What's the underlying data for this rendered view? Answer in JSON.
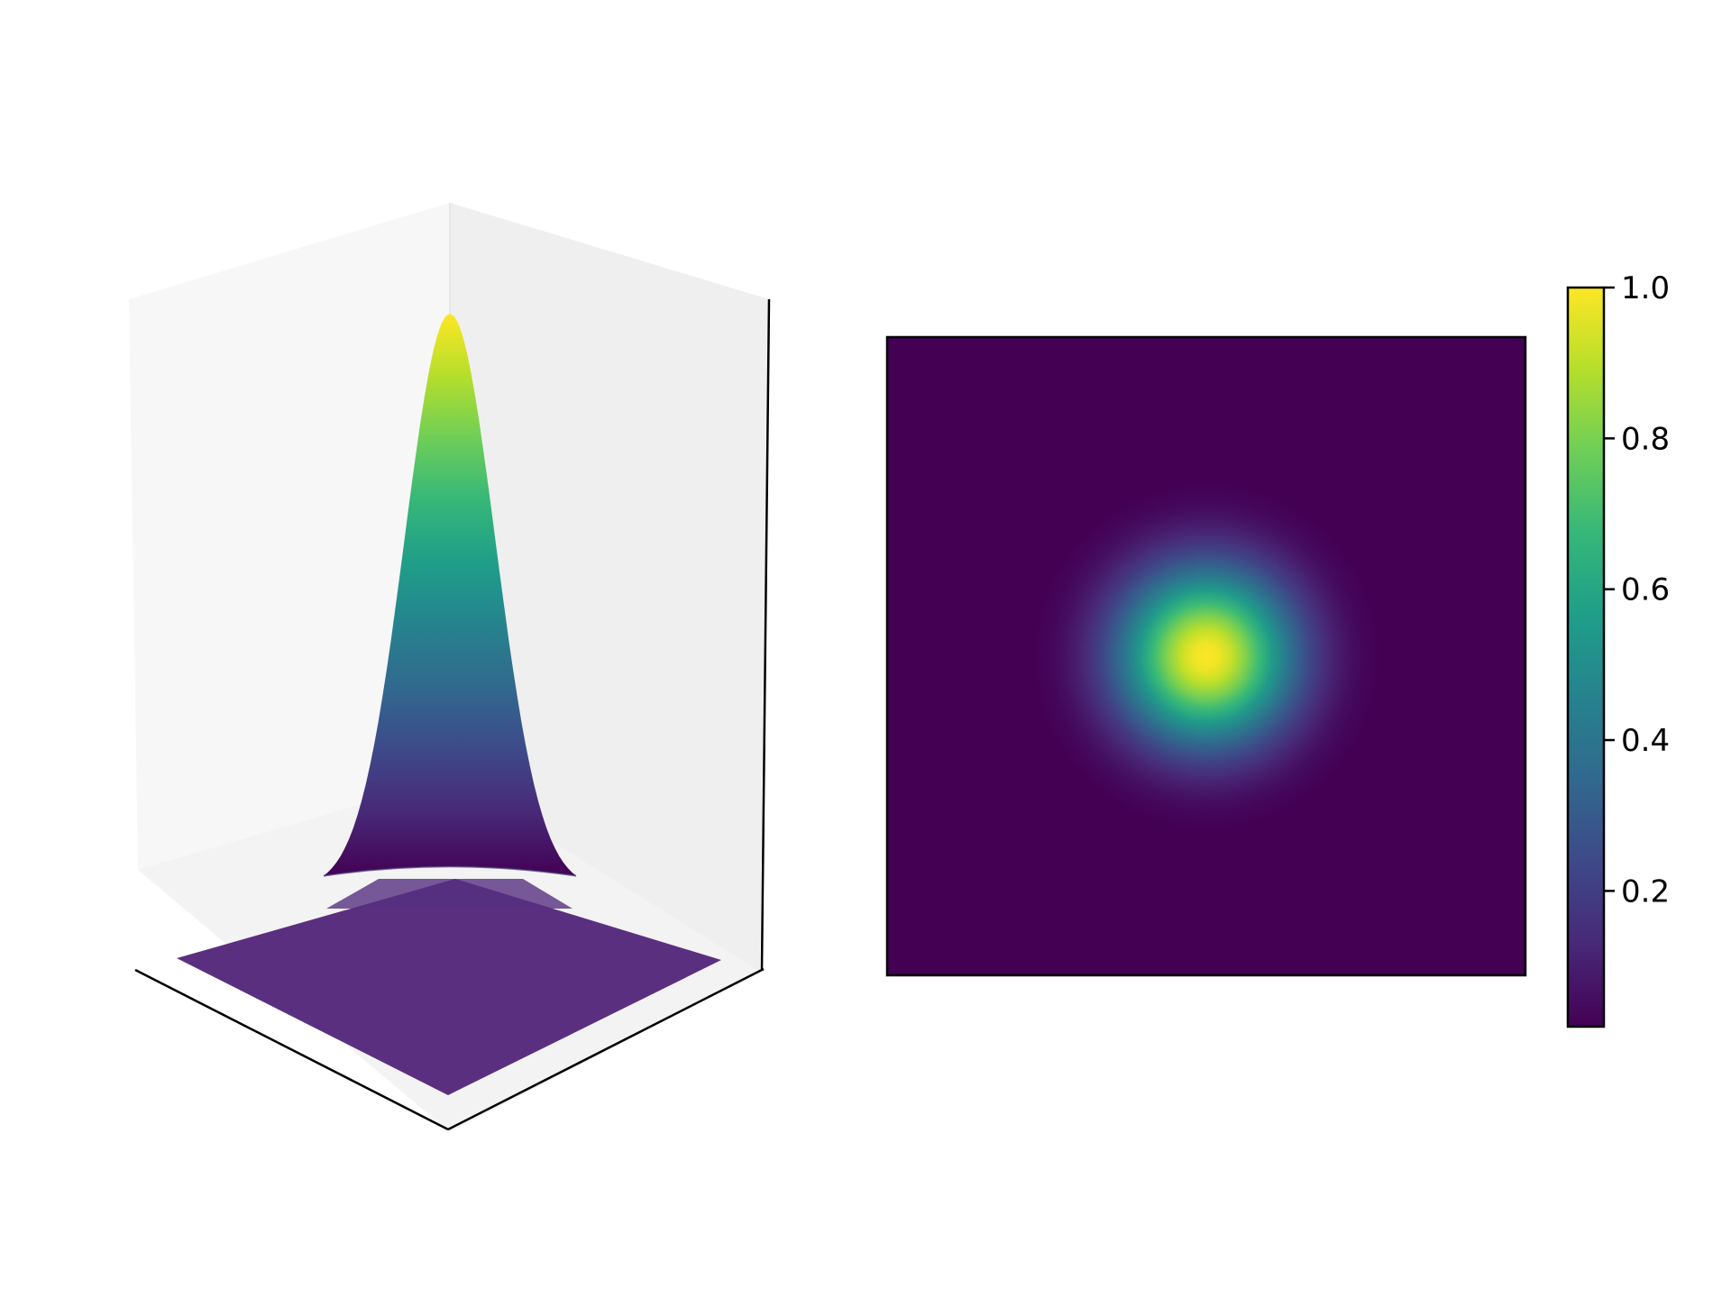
{
  "chart_data": [
    {
      "type": "surface",
      "function": "gaussian",
      "peak_value": 1.0,
      "base_value": 0.0,
      "colormap": "viridis",
      "axes_tick_labels_visible": false,
      "grid": false,
      "title": "",
      "xlabel": "",
      "ylabel": "",
      "zlabel": ""
    },
    {
      "type": "heatmap",
      "function": "gaussian",
      "peak_value": 1.0,
      "colormap": "viridis",
      "axes_tick_labels_visible": false,
      "grid": false,
      "title": "",
      "colorbar": {
        "range": [
          0.02,
          1.0
        ],
        "ticks": [
          0.2,
          0.4,
          0.6,
          0.8,
          1.0
        ],
        "tick_labels": [
          "0.2",
          "0.4",
          "0.6",
          "0.8",
          "1.0"
        ],
        "placement": "right"
      }
    }
  ],
  "colors": {
    "viridis": [
      "#440154",
      "#482878",
      "#3e4989",
      "#31688e",
      "#26828e",
      "#1f9e89",
      "#35b779",
      "#6ece58",
      "#b5de2b",
      "#fde725"
    ],
    "pane_left": "#f7f7f7",
    "pane_right": "#efefef",
    "pane_floor": "#f3f3f3",
    "axis_line": "#000000"
  }
}
